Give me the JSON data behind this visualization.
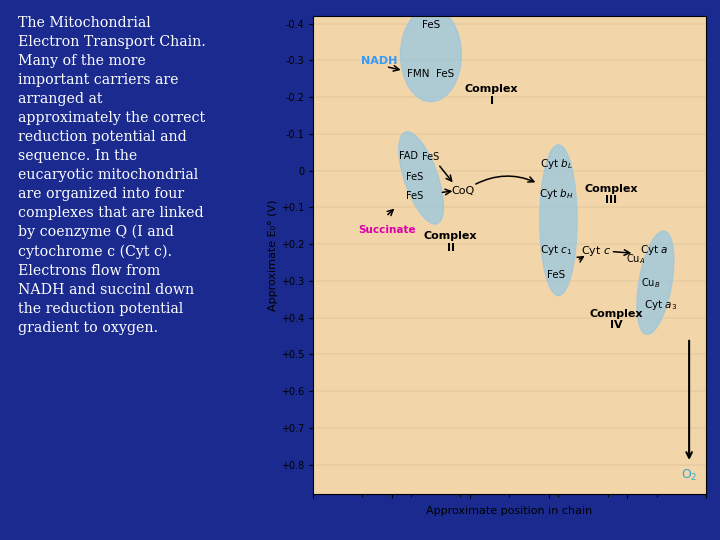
{
  "background_color": "#1a2a8e",
  "plot_bg_color": "#f2d5a8",
  "text_color_white": "#ffffff",
  "text_color_blue": "#3399ff",
  "text_color_magenta": "#dd00aa",
  "text_color_cyan": "#33aacc",
  "ylim_min": -0.42,
  "ylim_max": 0.88,
  "xlim_min": 0,
  "xlim_max": 10,
  "yticks": [
    -0.4,
    -0.3,
    -0.2,
    -0.1,
    0.0,
    0.1,
    0.2,
    0.3,
    0.4,
    0.5,
    0.6,
    0.7,
    0.8
  ],
  "ytick_labels": [
    "-0.4",
    "-0.3",
    "-0.2",
    "-0.1",
    "0",
    "+0.1",
    "+0.2",
    "+0.3",
    "+0.4",
    "+0.5",
    "+0.6",
    "+0.7",
    "+0.8"
  ],
  "ylabel": "Approximate E₀° (V)",
  "xlabel": "Approximate position in chain",
  "ellipse_color": "#9dc8de",
  "ellipse_alpha": 0.8,
  "left_text_lines": [
    "The Mitochondrial",
    "Electron Transport Chain.",
    "Many of the more",
    "important carriers are",
    "arranged at",
    "approximately the correct",
    "reduction potential and",
    "sequence. In the",
    "eucaryotic mitochondrial",
    "are organized into four",
    "complexes that are linked",
    "by coenzyme Q (I and",
    "cytochrome c (Cyt c).",
    "Electrons flow from",
    "NADH and succinl down",
    "the reduction potential",
    "gradient to oxygen."
  ]
}
